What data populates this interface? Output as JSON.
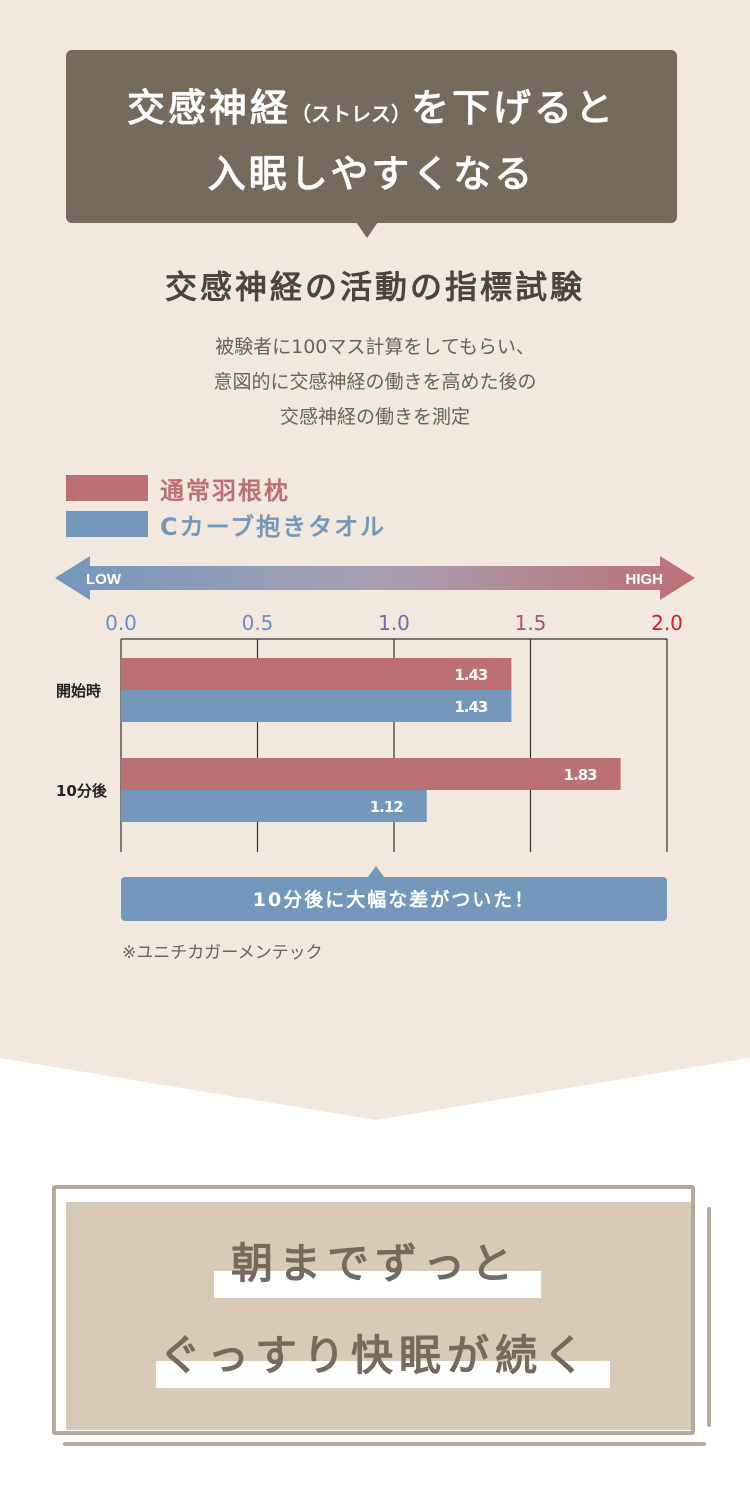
{
  "banner": {
    "line1_a": "交感神経",
    "line1_small": "（ストレス）",
    "line1_b": "を下げると",
    "line2": "入眠しやすくなる"
  },
  "heading": "交感神経の活動の指標試験",
  "description": [
    "被験者に100マス計算をしてもらい、",
    "意図的に交感神経の働きを高めた後の",
    "交感神経の働きを測定"
  ],
  "colors": {
    "red": "#bd7074",
    "blue": "#7497bc",
    "brown": "#766a5d",
    "bg": "#f3e8dd"
  },
  "chart_data": {
    "type": "bar",
    "orientation": "horizontal",
    "categories": [
      "開始時",
      "10分後"
    ],
    "series": [
      {
        "name": "通常羽根枕",
        "values": [
          1.43,
          1.83
        ],
        "labels": [
          "1.43",
          "1.83"
        ]
      },
      {
        "name": "Cカーブ抱きタオル",
        "values": [
          1.43,
          1.12
        ],
        "labels": [
          "1.43",
          "1.12"
        ]
      }
    ],
    "xlim": [
      0,
      2.0
    ],
    "xticks": [
      "0.0",
      "0.5",
      "1.0",
      "1.5",
      "2.0"
    ],
    "scale_low": "LOW",
    "scale_high": "HIGH",
    "grid": true,
    "legend": "top-left"
  },
  "callout": "10分後に大幅な差がついた！",
  "source_note": "※ユニチカガーメンテック",
  "conclusion": {
    "line1": "朝までずっと",
    "line2": "ぐっすり快眠が続く"
  }
}
